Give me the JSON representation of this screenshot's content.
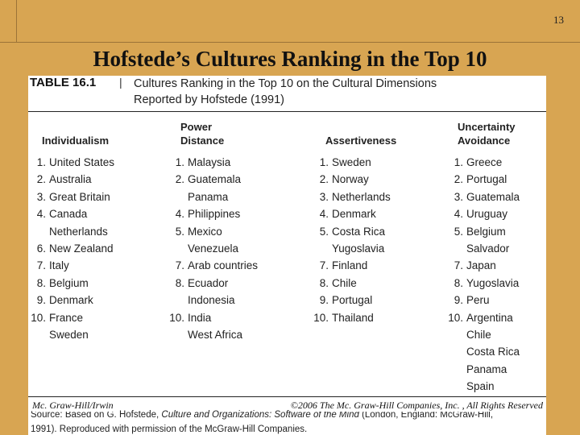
{
  "slide_number": "13",
  "slide_title": "Hofstede’s Cultures Ranking in the Top 10",
  "table": {
    "label": "TABLE 16.1",
    "separator": "|",
    "caption_line1": "Cultures Ranking in the Top 10 on the Cultural Dimensions",
    "caption_line2": "Reported by Hofstede (1991)",
    "columns": [
      {
        "header": [
          "Individualism"
        ],
        "rows": [
          {
            "n": "1.",
            "v": "United States"
          },
          {
            "n": "2.",
            "v": "Australia"
          },
          {
            "n": "3.",
            "v": "Great Britain"
          },
          {
            "n": "4.",
            "v": "Canada"
          },
          {
            "n": "",
            "v": "Netherlands"
          },
          {
            "n": "6.",
            "v": "New Zealand"
          },
          {
            "n": "7.",
            "v": "Italy"
          },
          {
            "n": "8.",
            "v": "Belgium"
          },
          {
            "n": "9.",
            "v": "Denmark"
          },
          {
            "n": "10.",
            "v": "France"
          },
          {
            "n": "",
            "v": "Sweden"
          }
        ]
      },
      {
        "header": [
          "Power",
          "Distance"
        ],
        "rows": [
          {
            "n": "1.",
            "v": "Malaysia"
          },
          {
            "n": "2.",
            "v": "Guatemala"
          },
          {
            "n": "",
            "v": "Panama"
          },
          {
            "n": "4.",
            "v": "Philippines"
          },
          {
            "n": "5.",
            "v": "Mexico"
          },
          {
            "n": "",
            "v": "Venezuela"
          },
          {
            "n": "7.",
            "v": "Arab countries"
          },
          {
            "n": "8.",
            "v": "Ecuador"
          },
          {
            "n": "",
            "v": "Indonesia"
          },
          {
            "n": "10.",
            "v": "India"
          },
          {
            "n": "",
            "v": "West Africa"
          }
        ]
      },
      {
        "header": [
          "Assertiveness"
        ],
        "rows": [
          {
            "n": "1.",
            "v": "Sweden"
          },
          {
            "n": "2.",
            "v": "Norway"
          },
          {
            "n": "3.",
            "v": "Netherlands"
          },
          {
            "n": "4.",
            "v": "Denmark"
          },
          {
            "n": "5.",
            "v": "Costa Rica"
          },
          {
            "n": "",
            "v": "Yugoslavia"
          },
          {
            "n": "7.",
            "v": "Finland"
          },
          {
            "n": "8.",
            "v": "Chile"
          },
          {
            "n": "9.",
            "v": "Portugal"
          },
          {
            "n": "10.",
            "v": "Thailand"
          }
        ]
      },
      {
        "header": [
          "Uncertainty",
          "Avoidance"
        ],
        "rows": [
          {
            "n": "1.",
            "v": "Greece"
          },
          {
            "n": "2.",
            "v": "Portugal"
          },
          {
            "n": "3.",
            "v": "Guatemala"
          },
          {
            "n": "4.",
            "v": "Uruguay"
          },
          {
            "n": "5.",
            "v": "Belgium"
          },
          {
            "n": "",
            "v": "Salvador"
          },
          {
            "n": "7.",
            "v": "Japan"
          },
          {
            "n": "8.",
            "v": "Yugoslavia"
          },
          {
            "n": "9.",
            "v": "Peru"
          },
          {
            "n": "10.",
            "v": "Argentina"
          },
          {
            "n": "",
            "v": "Chile"
          },
          {
            "n": "",
            "v": "Costa Rica"
          },
          {
            "n": "",
            "v": "Panama"
          },
          {
            "n": "",
            "v": "Spain"
          }
        ]
      }
    ],
    "source": {
      "prefix": "Source: Based on G. Hofstede,",
      "title": "Culture and Organizations: Software of the Mind",
      "rest": "(London, England: McGraw-Hill,",
      "line2": "1991). Reproduced with permission of the McGraw-Hill Companies."
    }
  },
  "footer": {
    "left": "Mc. Graw-Hill/Irwin",
    "right": "©2006 The Mc. Graw-Hill Companies, Inc. , All Rights Reserved"
  }
}
